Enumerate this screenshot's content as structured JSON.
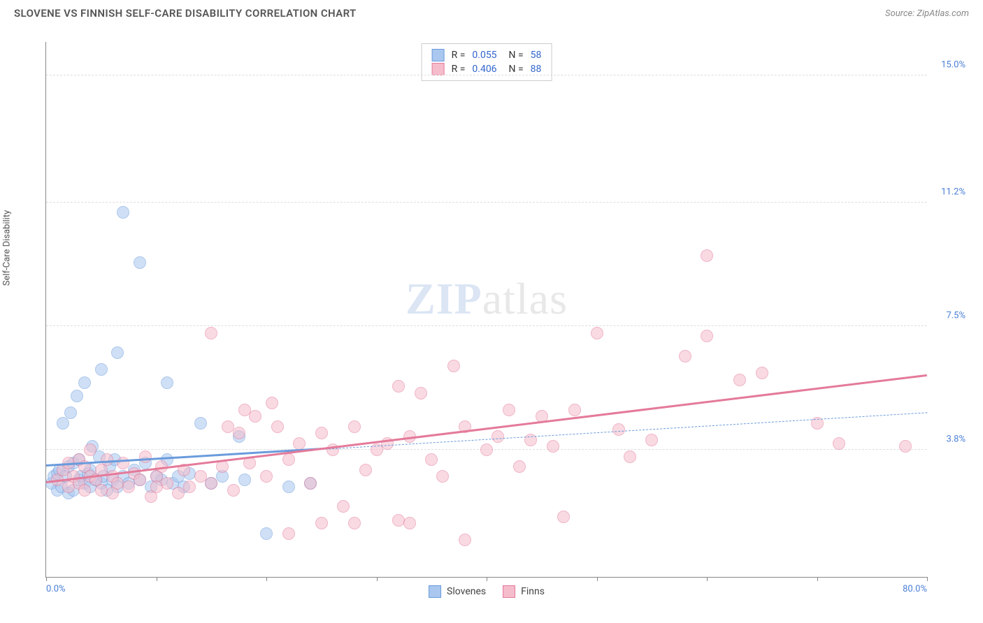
{
  "title": "SLOVENE VS FINNISH SELF-CARE DISABILITY CORRELATION CHART",
  "source_label": "Source: ZipAtlas.com",
  "ylabel": "Self-Care Disability",
  "watermark_bold": "ZIP",
  "watermark_rest": "atlas",
  "chart": {
    "type": "scatter",
    "background_color": "#ffffff",
    "grid_color": "#dddddd",
    "axis_color": "#888888",
    "label_color": "#4a7fd6",
    "xlim": [
      0.0,
      80.0
    ],
    "ylim": [
      0.0,
      16.0
    ],
    "x_tick_step": 10.0,
    "y_grid_values": [
      3.8,
      7.5,
      11.2,
      15.0
    ],
    "y_grid_labels": [
      "3.8%",
      "7.5%",
      "11.2%",
      "15.0%"
    ],
    "xmin_label": "0.0%",
    "xmax_label": "80.0%",
    "marker_radius": 9,
    "marker_opacity": 0.55,
    "series": [
      {
        "key": "slovenes",
        "label": "Slovenes",
        "fill": "#a9c7ef",
        "stroke": "#6a9bdc",
        "r_label": "R =",
        "r_value": "0.055",
        "n_label": "N =",
        "n_value": "58",
        "trend": {
          "x1": 0,
          "y1": 3.3,
          "x2": 25,
          "y2": 3.8,
          "width": 3,
          "style": "solid",
          "ext_x2": 80,
          "ext_y2": 4.9,
          "ext_style": "dashed",
          "ext_width": 1
        },
        "points": [
          [
            0.5,
            2.8
          ],
          [
            0.7,
            3.0
          ],
          [
            1.0,
            2.6
          ],
          [
            1.0,
            3.1
          ],
          [
            1.2,
            3.2
          ],
          [
            1.4,
            2.7
          ],
          [
            1.5,
            4.6
          ],
          [
            1.8,
            3.0
          ],
          [
            2.0,
            2.5
          ],
          [
            2.0,
            3.3
          ],
          [
            2.2,
            4.9
          ],
          [
            2.5,
            2.6
          ],
          [
            2.5,
            3.4
          ],
          [
            2.8,
            5.4
          ],
          [
            3.0,
            2.9
          ],
          [
            3.0,
            3.5
          ],
          [
            3.2,
            3.0
          ],
          [
            3.5,
            2.8
          ],
          [
            3.5,
            5.8
          ],
          [
            3.8,
            3.1
          ],
          [
            4.0,
            2.7
          ],
          [
            4.0,
            3.2
          ],
          [
            4.2,
            3.9
          ],
          [
            4.5,
            2.9
          ],
          [
            4.8,
            3.6
          ],
          [
            5.0,
            2.8
          ],
          [
            5.0,
            6.2
          ],
          [
            5.2,
            3.0
          ],
          [
            5.5,
            2.6
          ],
          [
            5.8,
            3.3
          ],
          [
            6.0,
            2.9
          ],
          [
            6.2,
            3.5
          ],
          [
            6.5,
            2.7
          ],
          [
            6.5,
            6.7
          ],
          [
            7.0,
            3.0
          ],
          [
            7.0,
            10.9
          ],
          [
            7.5,
            2.8
          ],
          [
            8.0,
            3.2
          ],
          [
            8.5,
            2.9
          ],
          [
            8.5,
            9.4
          ],
          [
            9.0,
            3.4
          ],
          [
            9.5,
            2.7
          ],
          [
            10.0,
            3.0
          ],
          [
            10.5,
            2.9
          ],
          [
            11.0,
            3.5
          ],
          [
            11.0,
            5.8
          ],
          [
            11.5,
            2.8
          ],
          [
            12.0,
            3.0
          ],
          [
            12.5,
            2.7
          ],
          [
            13.0,
            3.1
          ],
          [
            14.0,
            4.6
          ],
          [
            15.0,
            2.8
          ],
          [
            16.0,
            3.0
          ],
          [
            17.5,
            4.2
          ],
          [
            18.0,
            2.9
          ],
          [
            20.0,
            1.3
          ],
          [
            22.0,
            2.7
          ],
          [
            24.0,
            2.8
          ]
        ]
      },
      {
        "key": "finns",
        "label": "Finns",
        "fill": "#f5bccb",
        "stroke": "#e47a9a",
        "r_label": "R =",
        "r_value": "0.406",
        "n_label": "N =",
        "n_value": "88",
        "trend": {
          "x1": 0,
          "y1": 2.8,
          "x2": 80,
          "y2": 6.0,
          "width": 3,
          "style": "solid"
        },
        "points": [
          [
            1.0,
            2.9
          ],
          [
            1.5,
            3.2
          ],
          [
            2.0,
            2.7
          ],
          [
            2.0,
            3.4
          ],
          [
            2.5,
            3.0
          ],
          [
            3.0,
            2.8
          ],
          [
            3.0,
            3.5
          ],
          [
            3.5,
            2.6
          ],
          [
            3.5,
            3.3
          ],
          [
            4.0,
            3.0
          ],
          [
            4.0,
            3.8
          ],
          [
            4.5,
            2.9
          ],
          [
            5.0,
            3.2
          ],
          [
            5.0,
            2.6
          ],
          [
            5.5,
            3.5
          ],
          [
            6.0,
            3.0
          ],
          [
            6.0,
            2.5
          ],
          [
            6.5,
            2.8
          ],
          [
            7.0,
            3.4
          ],
          [
            7.5,
            2.7
          ],
          [
            8.0,
            3.1
          ],
          [
            8.5,
            2.9
          ],
          [
            9.0,
            3.6
          ],
          [
            9.5,
            2.4
          ],
          [
            10.0,
            3.0
          ],
          [
            10.0,
            2.7
          ],
          [
            10.5,
            3.3
          ],
          [
            11.0,
            2.8
          ],
          [
            12.0,
            2.5
          ],
          [
            12.5,
            3.2
          ],
          [
            13.0,
            2.7
          ],
          [
            14.0,
            3.0
          ],
          [
            15.0,
            2.8
          ],
          [
            15.0,
            7.3
          ],
          [
            16.0,
            3.3
          ],
          [
            16.5,
            4.5
          ],
          [
            17.0,
            2.6
          ],
          [
            17.5,
            4.3
          ],
          [
            18.0,
            5.0
          ],
          [
            18.5,
            3.4
          ],
          [
            19.0,
            4.8
          ],
          [
            20.0,
            3.0
          ],
          [
            20.5,
            5.2
          ],
          [
            21.0,
            4.5
          ],
          [
            22.0,
            3.5
          ],
          [
            22.0,
            1.3
          ],
          [
            23.0,
            4.0
          ],
          [
            24.0,
            2.8
          ],
          [
            25.0,
            1.6
          ],
          [
            25.0,
            4.3
          ],
          [
            26.0,
            3.8
          ],
          [
            27.0,
            2.1
          ],
          [
            28.0,
            1.6
          ],
          [
            28.0,
            4.5
          ],
          [
            29.0,
            3.2
          ],
          [
            30.0,
            3.8
          ],
          [
            31.0,
            4.0
          ],
          [
            32.0,
            1.7
          ],
          [
            32.0,
            5.7
          ],
          [
            33.0,
            4.2
          ],
          [
            33.0,
            1.6
          ],
          [
            34.0,
            5.5
          ],
          [
            35.0,
            3.5
          ],
          [
            36.0,
            3.0
          ],
          [
            37.0,
            6.3
          ],
          [
            38.0,
            4.5
          ],
          [
            38.0,
            1.1
          ],
          [
            40.0,
            3.8
          ],
          [
            41.0,
            4.2
          ],
          [
            42.0,
            5.0
          ],
          [
            43.0,
            3.3
          ],
          [
            44.0,
            4.1
          ],
          [
            45.0,
            4.8
          ],
          [
            46.0,
            3.9
          ],
          [
            47.0,
            1.8
          ],
          [
            48.0,
            5.0
          ],
          [
            50.0,
            7.3
          ],
          [
            52.0,
            4.4
          ],
          [
            53.0,
            3.6
          ],
          [
            55.0,
            4.1
          ],
          [
            58.0,
            6.6
          ],
          [
            60.0,
            7.2
          ],
          [
            60.0,
            9.6
          ],
          [
            63.0,
            5.9
          ],
          [
            65.0,
            6.1
          ],
          [
            70.0,
            4.6
          ],
          [
            72.0,
            4.0
          ],
          [
            78.0,
            3.9
          ]
        ]
      }
    ]
  },
  "legend_bottom": [
    {
      "label": "Slovenes",
      "fill": "#a9c7ef",
      "stroke": "#6a9bdc"
    },
    {
      "label": "Finns",
      "fill": "#f5bccb",
      "stroke": "#e47a9a"
    }
  ]
}
